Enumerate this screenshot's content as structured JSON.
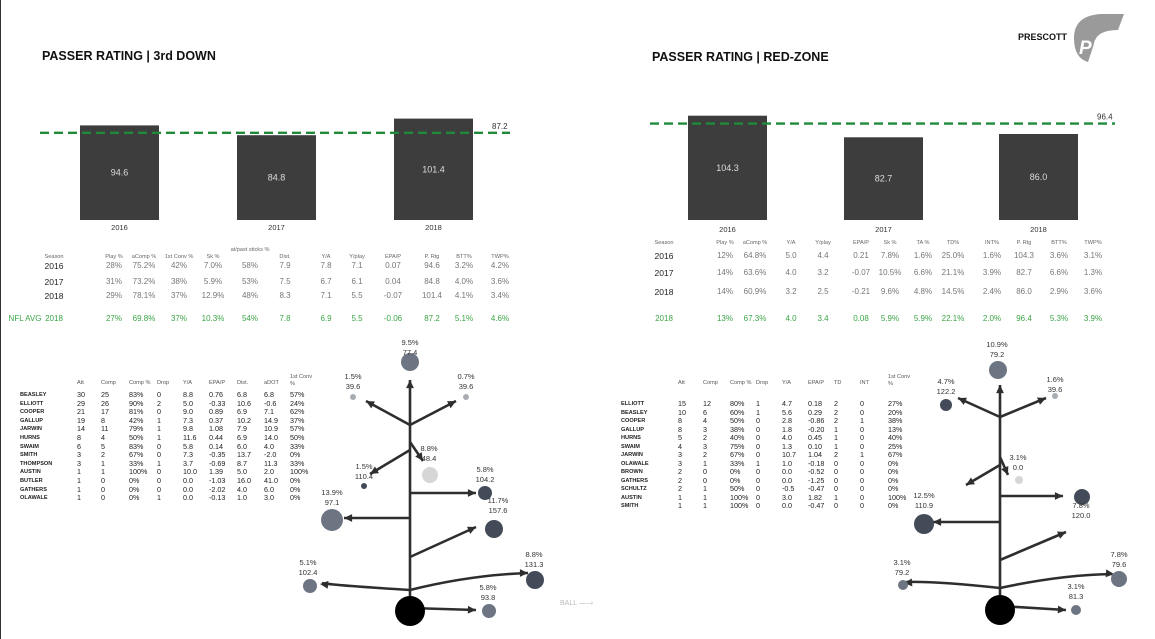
{
  "brand": {
    "player": "PRESCOTT",
    "logo_text": "PFF"
  },
  "colors": {
    "bar": "#3d3d3d",
    "avg_line": "#1e8a3a",
    "nfl_avg_text": "#3aa545",
    "circle_dark": "#424b57",
    "circle_mid": "#6d7583",
    "circle_light": "#a9adb3",
    "circle_pale": "#d6d6d6",
    "arrow": "#2e2e2e",
    "qb": "#000000"
  },
  "chart_data": [
    {
      "type": "bar",
      "title": "PASSER RATING | 3rd DOWN",
      "categories": [
        "2016",
        "2017",
        "2018"
      ],
      "values": [
        94.6,
        84.8,
        101.4
      ],
      "reference_line": {
        "value": 87.2,
        "label": "87.2"
      },
      "ylim": [
        0,
        120
      ],
      "grid": false
    },
    {
      "type": "bar",
      "title": "PASSER RATING | RED-ZONE",
      "categories": [
        "2016",
        "2017",
        "2018"
      ],
      "values": [
        104.3,
        82.7,
        86.0
      ],
      "reference_line": {
        "value": 96.4,
        "label": "96.4"
      },
      "ylim": [
        0,
        120
      ],
      "grid": false
    }
  ],
  "third_down_table": {
    "headers": [
      "Season",
      "Play %",
      "aComp %",
      "1st Conv %",
      "Sk %",
      "at/past sticks %",
      "Dist.",
      "Y/A",
      "Y/play",
      "EPA/P",
      "P. Rtg",
      "BTT%",
      "TWP%"
    ],
    "rows": [
      [
        "2016",
        "28%",
        "75.2%",
        "42%",
        "7.0%",
        "58%",
        "7.9",
        "7.8",
        "7.1",
        "0.07",
        "94.6",
        "3.2%",
        "4.2%"
      ],
      [
        "2017",
        "31%",
        "73.2%",
        "38%",
        "5.9%",
        "53%",
        "7.5",
        "6.7",
        "6.1",
        "0.04",
        "84.8",
        "4.0%",
        "3.6%"
      ],
      [
        "2018",
        "29%",
        "78.1%",
        "37%",
        "12.9%",
        "48%",
        "8.3",
        "7.1",
        "5.5",
        "-0.07",
        "101.4",
        "4.1%",
        "3.4%"
      ]
    ],
    "nfl_avg": [
      "NFL AVG",
      "2018",
      "27%",
      "69.8%",
      "37%",
      "10.3%",
      "54%",
      "7.8",
      "6.9",
      "5.5",
      "-0.06",
      "87.2",
      "5.1%",
      "4.6%"
    ]
  },
  "redzone_table": {
    "headers": [
      "Season",
      "Play %",
      "aComp %",
      "Y/A",
      "Y/play",
      "EPA/P",
      "Sk %",
      "TA %",
      "TD%",
      "INT%",
      "P. Rtg",
      "BTT%",
      "TWP%"
    ],
    "rows": [
      [
        "2016",
        "12%",
        "64.8%",
        "5.0",
        "4.4",
        "0.21",
        "7.8%",
        "1.6%",
        "25.0%",
        "1.6%",
        "104.3",
        "3.6%",
        "3.1%"
      ],
      [
        "2017",
        "14%",
        "63.6%",
        "4.0",
        "3.2",
        "-0.07",
        "10.5%",
        "6.6%",
        "21.1%",
        "3.9%",
        "82.7",
        "6.6%",
        "1.3%"
      ],
      [
        "2018",
        "14%",
        "60.9%",
        "3.2",
        "2.5",
        "-0.21",
        "9.6%",
        "4.8%",
        "14.5%",
        "2.4%",
        "86.0",
        "2.9%",
        "3.6%"
      ]
    ],
    "nfl_avg": [
      "2018",
      "13%",
      "67.3%",
      "4.0",
      "3.4",
      "0.08",
      "5.9%",
      "5.9%",
      "22.1%",
      "2.0%",
      "96.4",
      "5.3%",
      "3.9%"
    ]
  },
  "third_down_receivers": {
    "headers": [
      "Att",
      "Comp",
      "Comp %",
      "Drop",
      "Y/A",
      "EPA/P",
      "Dist.",
      "aDOT",
      "1st Conv %"
    ],
    "rows": [
      [
        "BEASLEY",
        "30",
        "25",
        "83%",
        "0",
        "8.8",
        "0.76",
        "6.8",
        "6.8",
        "57%"
      ],
      [
        "ELLIOTT",
        "29",
        "26",
        "90%",
        "2",
        "5.0",
        "-0.33",
        "10.6",
        "-0.6",
        "24%"
      ],
      [
        "COOPER",
        "21",
        "17",
        "81%",
        "0",
        "9.0",
        "0.89",
        "6.9",
        "7.1",
        "62%"
      ],
      [
        "GALLUP",
        "19",
        "8",
        "42%",
        "1",
        "7.3",
        "0.37",
        "10.2",
        "14.9",
        "37%"
      ],
      [
        "JARWIN",
        "14",
        "11",
        "79%",
        "1",
        "9.8",
        "1.08",
        "7.9",
        "10.9",
        "57%"
      ],
      [
        "HURNS",
        "8",
        "4",
        "50%",
        "1",
        "11.6",
        "0.44",
        "6.9",
        "14.0",
        "50%"
      ],
      [
        "SWAIM",
        "6",
        "5",
        "83%",
        "0",
        "5.8",
        "0.14",
        "6.0",
        "4.0",
        "33%"
      ],
      [
        "SMITH",
        "3",
        "2",
        "67%",
        "0",
        "7.3",
        "-0.35",
        "13.7",
        "-2.0",
        "0%"
      ],
      [
        "THOMPSON",
        "3",
        "1",
        "33%",
        "1",
        "3.7",
        "-0.69",
        "8.7",
        "11.3",
        "33%"
      ],
      [
        "AUSTIN",
        "1",
        "1",
        "100%",
        "0",
        "10.0",
        "1.39",
        "5.0",
        "2.0",
        "100%"
      ],
      [
        "BUTLER",
        "1",
        "0",
        "0%",
        "0",
        "0.0",
        "-1.03",
        "16.0",
        "41.0",
        "0%"
      ],
      [
        "GATHERS",
        "1",
        "0",
        "0%",
        "0",
        "0.0",
        "-2.02",
        "4.0",
        "6.0",
        "0%"
      ],
      [
        "OLAWALE",
        "1",
        "0",
        "0%",
        "1",
        "0.0",
        "-0.13",
        "1.0",
        "3.0",
        "0%"
      ]
    ]
  },
  "redzone_receivers": {
    "headers": [
      "Att",
      "Comp",
      "Comp %",
      "Drop",
      "Y/A",
      "EPA/P",
      "TD",
      "INT",
      "1st Conv %"
    ],
    "rows": [
      [
        "ELLIOTT",
        "15",
        "12",
        "80%",
        "1",
        "4.7",
        "0.18",
        "2",
        "0",
        "27%"
      ],
      [
        "BEASLEY",
        "10",
        "6",
        "60%",
        "1",
        "5.6",
        "0.29",
        "2",
        "0",
        "20%"
      ],
      [
        "COOPER",
        "8",
        "4",
        "50%",
        "0",
        "2.8",
        "-0.86",
        "2",
        "1",
        "38%"
      ],
      [
        "GALLUP",
        "8",
        "3",
        "38%",
        "0",
        "1.8",
        "-0.20",
        "1",
        "0",
        "13%"
      ],
      [
        "HURNS",
        "5",
        "2",
        "40%",
        "0",
        "4.0",
        "0.45",
        "1",
        "0",
        "40%"
      ],
      [
        "SWAIM",
        "4",
        "3",
        "75%",
        "0",
        "1.3",
        "0.10",
        "1",
        "0",
        "25%"
      ],
      [
        "JARWIN",
        "3",
        "2",
        "67%",
        "0",
        "10.7",
        "1.04",
        "2",
        "1",
        "67%"
      ],
      [
        "OLAWALE",
        "3",
        "1",
        "33%",
        "1",
        "1.0",
        "-0.18",
        "0",
        "0",
        "0%"
      ],
      [
        "BROWN",
        "2",
        "0",
        "0%",
        "0",
        "0.0",
        "-0.52",
        "0",
        "0",
        "0%"
      ],
      [
        "GATHERS",
        "2",
        "0",
        "0%",
        "0",
        "0.0",
        "-1.25",
        "0",
        "0",
        "0%"
      ],
      [
        "SCHULTZ",
        "2",
        "1",
        "50%",
        "0",
        "-0.5",
        "-0.47",
        "0",
        "0",
        "0%"
      ],
      [
        "AUSTIN",
        "1",
        "1",
        "100%",
        "0",
        "3.0",
        "1.82",
        "1",
        "0",
        "100%"
      ],
      [
        "SMITH",
        "1",
        "1",
        "100%",
        "0",
        "0.0",
        "-0.47",
        "0",
        "0",
        "0%"
      ]
    ]
  },
  "route_tree_3rd": [
    {
      "pct": "9.5%",
      "rating": "77.4",
      "shade": "mid"
    },
    {
      "pct": "1.5%",
      "rating": "39.6",
      "shade": "light"
    },
    {
      "pct": "0.7%",
      "rating": "39.6",
      "shade": "light"
    },
    {
      "pct": "8.8%",
      "rating": "48.4",
      "shade": "pale"
    },
    {
      "pct": "1.5%",
      "rating": "110.4",
      "shade": "dark"
    },
    {
      "pct": "5.8%",
      "rating": "104.2",
      "shade": "dark"
    },
    {
      "pct": "11.7%",
      "rating": "157.6",
      "shade": "dark"
    },
    {
      "pct": "13.9%",
      "rating": "97.1",
      "shade": "mid"
    },
    {
      "pct": "8.8%",
      "rating": "131.3",
      "shade": "dark"
    },
    {
      "pct": "5.1%",
      "rating": "102.4",
      "shade": "mid"
    },
    {
      "pct": "5.8%",
      "rating": "93.8",
      "shade": "mid"
    }
  ],
  "route_tree_rz": [
    {
      "pct": "10.9%",
      "rating": "79.2",
      "shade": "mid"
    },
    {
      "pct": "4.7%",
      "rating": "122.2",
      "shade": "dark"
    },
    {
      "pct": "1.6%",
      "rating": "39.6",
      "shade": "light"
    },
    {
      "pct": "3.1%",
      "rating": "0.0",
      "shade": "pale"
    },
    {
      "pct": "7.8%",
      "rating": "120.0",
      "shade": "dark"
    },
    {
      "pct": "12.5%",
      "rating": "110.9",
      "shade": "dark"
    },
    {
      "pct": "7.8%",
      "rating": "79.6",
      "shade": "mid"
    },
    {
      "pct": "3.1%",
      "rating": "79.2",
      "shade": "mid"
    },
    {
      "pct": "3.1%",
      "rating": "81.3",
      "shade": "mid"
    }
  ],
  "ball_label": "BALL"
}
